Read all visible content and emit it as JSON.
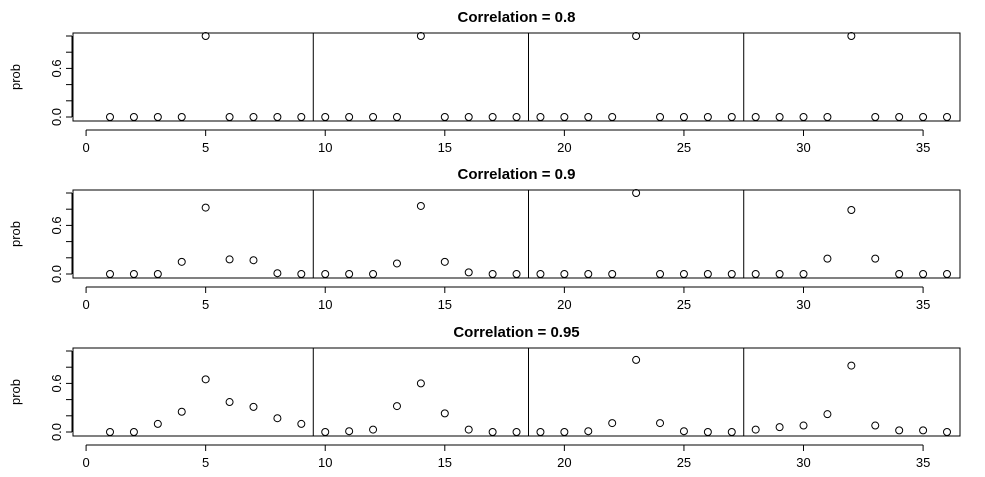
{
  "chart_data": [
    {
      "type": "scatter",
      "title": "Correlation = 0.8",
      "ylabel": "prob",
      "xlim": [
        0,
        36
      ],
      "ylim": [
        0,
        1
      ],
      "xticks": [
        "0",
        "5",
        "10",
        "15",
        "20",
        "25",
        "30",
        "35"
      ],
      "yticks": [
        "0.0",
        "0.6"
      ],
      "dividers": [
        9.5,
        18.5,
        27.5
      ],
      "x": [
        1,
        2,
        3,
        4,
        5,
        6,
        7,
        8,
        9,
        10,
        11,
        12,
        13,
        14,
        15,
        16,
        17,
        18,
        19,
        20,
        21,
        22,
        23,
        24,
        25,
        26,
        27,
        28,
        29,
        30,
        31,
        32,
        33,
        34,
        35,
        36
      ],
      "y": [
        0,
        0,
        0,
        0,
        1,
        0,
        0,
        0,
        0,
        0,
        0,
        0,
        0,
        1,
        0,
        0,
        0,
        0,
        0,
        0,
        0,
        0,
        1,
        0,
        0,
        0,
        0,
        0,
        0,
        0,
        0,
        1,
        0,
        0,
        0,
        0
      ]
    },
    {
      "type": "scatter",
      "title": "Correlation = 0.9",
      "ylabel": "prob",
      "xlim": [
        0,
        36
      ],
      "ylim": [
        0,
        1
      ],
      "xticks": [
        "0",
        "5",
        "10",
        "15",
        "20",
        "25",
        "30",
        "35"
      ],
      "yticks": [
        "0.0",
        "0.6"
      ],
      "dividers": [
        9.5,
        18.5,
        27.5
      ],
      "x": [
        1,
        2,
        3,
        4,
        5,
        6,
        7,
        8,
        9,
        10,
        11,
        12,
        13,
        14,
        15,
        16,
        17,
        18,
        19,
        20,
        21,
        22,
        23,
        24,
        25,
        26,
        27,
        28,
        29,
        30,
        31,
        32,
        33,
        34,
        35,
        36
      ],
      "y": [
        0,
        0,
        0,
        0.15,
        0.82,
        0.18,
        0.17,
        0.01,
        0,
        0,
        0,
        0,
        0.13,
        0.84,
        0.15,
        0.02,
        0,
        0,
        0,
        0,
        0,
        0,
        1.0,
        0,
        0,
        0,
        0,
        0,
        0,
        0,
        0.19,
        0.79,
        0.19,
        0,
        0,
        0
      ]
    },
    {
      "type": "scatter",
      "title": "Correlation = 0.95",
      "ylabel": "prob",
      "xlim": [
        0,
        36
      ],
      "ylim": [
        0,
        1
      ],
      "xticks": [
        "0",
        "5",
        "10",
        "15",
        "20",
        "25",
        "30",
        "35"
      ],
      "yticks": [
        "0.0",
        "0.6"
      ],
      "dividers": [
        9.5,
        18.5,
        27.5
      ],
      "x": [
        1,
        2,
        3,
        4,
        5,
        6,
        7,
        8,
        9,
        10,
        11,
        12,
        13,
        14,
        15,
        16,
        17,
        18,
        19,
        20,
        21,
        22,
        23,
        24,
        25,
        26,
        27,
        28,
        29,
        30,
        31,
        32,
        33,
        34,
        35,
        36
      ],
      "y": [
        0,
        0,
        0.1,
        0.25,
        0.65,
        0.37,
        0.31,
        0.17,
        0.1,
        0,
        0.01,
        0.03,
        0.32,
        0.6,
        0.23,
        0.03,
        0,
        0,
        0,
        0,
        0.01,
        0.11,
        0.89,
        0.11,
        0.01,
        0,
        0,
        0.03,
        0.06,
        0.08,
        0.22,
        0.82,
        0.08,
        0.02,
        0.02,
        0
      ]
    }
  ]
}
